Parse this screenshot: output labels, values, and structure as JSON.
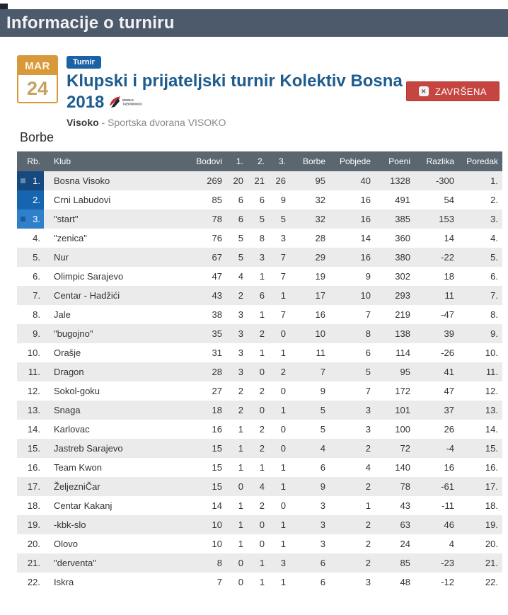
{
  "page_header": {
    "title": "Informacije o turniru"
  },
  "event": {
    "date": {
      "month": "MAR",
      "day": "24"
    },
    "type_badge": "Turnir",
    "title": "Klupski i prijateljski turnir Kolektiv Bosna 2018",
    "federation_logo": {
      "name": "world-taekwondo-logo",
      "text_top": "WORLD",
      "text_bottom": "TAEKWONDO"
    },
    "location": {
      "city": "Visoko",
      "venue_suffix": "- Sportska dvorana VISOKO"
    },
    "status": {
      "label": "ZAVRŠENA",
      "icon_glyph": "✕"
    }
  },
  "section": {
    "title": "Borbe"
  },
  "standings_table": {
    "columns": [
      "Rb.",
      "Klub",
      "Bodovi",
      "1.",
      "2.",
      "3.",
      "Borbe",
      "Pobjede",
      "Poeni",
      "Razlika",
      "Poredak"
    ],
    "rows": [
      {
        "cells": [
          "1.",
          "Bosna Visoko",
          "269",
          "20",
          "21",
          "26",
          "95",
          "40",
          "1328",
          "-300",
          "1."
        ],
        "rank_bg": "#15497f",
        "marker": "rgba(255,255,255,0.35)"
      },
      {
        "cells": [
          "2.",
          "Crni Labudovi",
          "85",
          "6",
          "6",
          "9",
          "32",
          "16",
          "491",
          "54",
          "2."
        ],
        "rank_bg": "#1565b0",
        "marker": null
      },
      {
        "cells": [
          "3.",
          "\"start\"",
          "78",
          "6",
          "5",
          "5",
          "32",
          "16",
          "385",
          "153",
          "3."
        ],
        "rank_bg": "#2f80cb",
        "marker": "rgba(10,45,95,0.45)"
      },
      {
        "cells": [
          "4.",
          "\"zenica\"",
          "76",
          "5",
          "8",
          "3",
          "28",
          "14",
          "360",
          "14",
          "4."
        ],
        "rank_bg": null,
        "marker": null
      },
      {
        "cells": [
          "5.",
          "Nur",
          "67",
          "5",
          "3",
          "7",
          "29",
          "16",
          "380",
          "-22",
          "5."
        ],
        "rank_bg": null,
        "marker": null
      },
      {
        "cells": [
          "6.",
          "Olimpic Sarajevo",
          "47",
          "4",
          "1",
          "7",
          "19",
          "9",
          "302",
          "18",
          "6."
        ],
        "rank_bg": null,
        "marker": null
      },
      {
        "cells": [
          "7.",
          "Centar - Hadžići",
          "43",
          "2",
          "6",
          "1",
          "17",
          "10",
          "293",
          "11",
          "7."
        ],
        "rank_bg": null,
        "marker": null
      },
      {
        "cells": [
          "8.",
          "Jale",
          "38",
          "3",
          "1",
          "7",
          "16",
          "7",
          "219",
          "-47",
          "8."
        ],
        "rank_bg": null,
        "marker": null
      },
      {
        "cells": [
          "9.",
          "\"bugojno\"",
          "35",
          "3",
          "2",
          "0",
          "10",
          "8",
          "138",
          "39",
          "9."
        ],
        "rank_bg": null,
        "marker": null
      },
      {
        "cells": [
          "10.",
          "Orašje",
          "31",
          "3",
          "1",
          "1",
          "11",
          "6",
          "114",
          "-26",
          "10."
        ],
        "rank_bg": null,
        "marker": null
      },
      {
        "cells": [
          "11.",
          "Dragon",
          "28",
          "3",
          "0",
          "2",
          "7",
          "5",
          "95",
          "41",
          "11."
        ],
        "rank_bg": null,
        "marker": null
      },
      {
        "cells": [
          "12.",
          "Sokol-goku",
          "27",
          "2",
          "2",
          "0",
          "9",
          "7",
          "172",
          "47",
          "12."
        ],
        "rank_bg": null,
        "marker": null
      },
      {
        "cells": [
          "13.",
          "Snaga",
          "18",
          "2",
          "0",
          "1",
          "5",
          "3",
          "101",
          "37",
          "13."
        ],
        "rank_bg": null,
        "marker": null
      },
      {
        "cells": [
          "14.",
          "Karlovac",
          "16",
          "1",
          "2",
          "0",
          "5",
          "3",
          "100",
          "26",
          "14."
        ],
        "rank_bg": null,
        "marker": null
      },
      {
        "cells": [
          "15.",
          "Jastreb Sarajevo",
          "15",
          "1",
          "2",
          "0",
          "4",
          "2",
          "72",
          "-4",
          "15."
        ],
        "rank_bg": null,
        "marker": null
      },
      {
        "cells": [
          "16.",
          "Team Kwon",
          "15",
          "1",
          "1",
          "1",
          "6",
          "4",
          "140",
          "16",
          "16."
        ],
        "rank_bg": null,
        "marker": null
      },
      {
        "cells": [
          "17.",
          "ŽeljezniČar",
          "15",
          "0",
          "4",
          "1",
          "9",
          "2",
          "78",
          "-61",
          "17."
        ],
        "rank_bg": null,
        "marker": null
      },
      {
        "cells": [
          "18.",
          "Centar Kakanj",
          "14",
          "1",
          "2",
          "0",
          "3",
          "1",
          "43",
          "-11",
          "18."
        ],
        "rank_bg": null,
        "marker": null
      },
      {
        "cells": [
          "19.",
          "-kbk-slo",
          "10",
          "1",
          "0",
          "1",
          "3",
          "2",
          "63",
          "46",
          "19."
        ],
        "rank_bg": null,
        "marker": null
      },
      {
        "cells": [
          "20.",
          "Olovo",
          "10",
          "1",
          "0",
          "1",
          "3",
          "2",
          "24",
          "4",
          "20."
        ],
        "rank_bg": null,
        "marker": null
      },
      {
        "cells": [
          "21.",
          "\"derventa\"",
          "8",
          "0",
          "1",
          "3",
          "6",
          "2",
          "85",
          "-23",
          "21."
        ],
        "rank_bg": null,
        "marker": null
      },
      {
        "cells": [
          "22.",
          "Iskra",
          "7",
          "0",
          "1",
          "1",
          "6",
          "3",
          "48",
          "-12",
          "22."
        ],
        "rank_bg": null,
        "marker": null
      }
    ]
  },
  "colors": {
    "header_bar": "#4d5a6b",
    "table_header": "#5b6770",
    "accent_blue": "#1d5c8f",
    "badge_blue": "#1a61a5",
    "status_red": "#c64540",
    "calendar_orange": "#d8993b",
    "row_alt": "#ebebeb",
    "rank_dark_blue": "#15497f",
    "rank_mid_blue": "#1565b0",
    "rank_light_blue": "#2f80cb"
  }
}
